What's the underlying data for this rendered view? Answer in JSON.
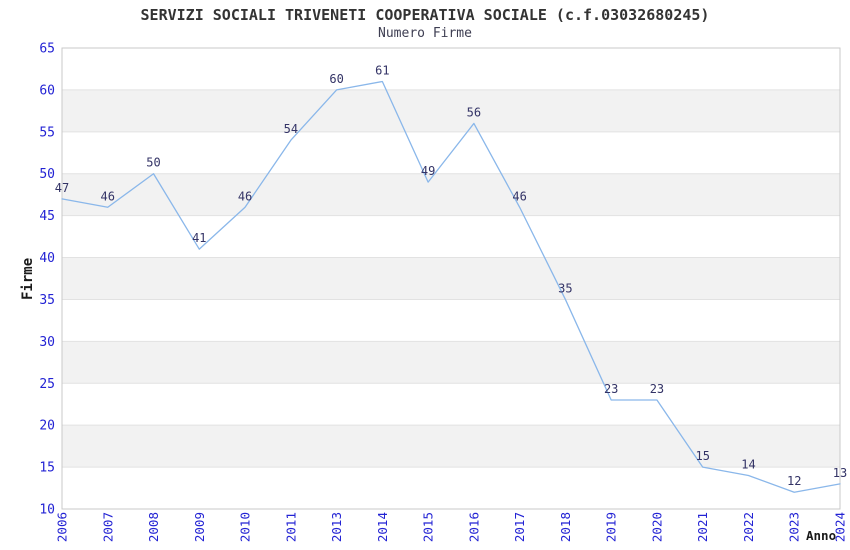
{
  "chart_data": {
    "type": "line",
    "title": "SERVIZI SOCIALI TRIVENETI COOPERATIVA SOCIALE (c.f.03032680245)",
    "subtitle": "Numero Firme",
    "xlabel": "Anno",
    "ylabel": "Firme",
    "categories": [
      "2006",
      "2007",
      "2008",
      "2009",
      "2010",
      "2011",
      "2013",
      "2014",
      "2015",
      "2016",
      "2017",
      "2018",
      "2019",
      "2020",
      "2021",
      "2022",
      "2023",
      "2024"
    ],
    "values": [
      47,
      46,
      50,
      41,
      46,
      54,
      60,
      61,
      49,
      56,
      46,
      35,
      23,
      23,
      15,
      14,
      12,
      13
    ],
    "ylim": [
      10,
      65
    ],
    "ytick_step": 5,
    "grid": "horizontal",
    "banded_background": true,
    "legend": "none",
    "point_labels_shown": true,
    "colors": {
      "line": "#8ab7ea",
      "tick_labels": "#2323d4",
      "point_labels": "#333366",
      "band": "#f2f2f2",
      "grid": "#e2e2e2",
      "plot_border": "#c9c9c9",
      "title": "#333333",
      "subtitle": "#3e3e52",
      "axis_titles": "#1a1a1a",
      "background": "#ffffff"
    }
  }
}
